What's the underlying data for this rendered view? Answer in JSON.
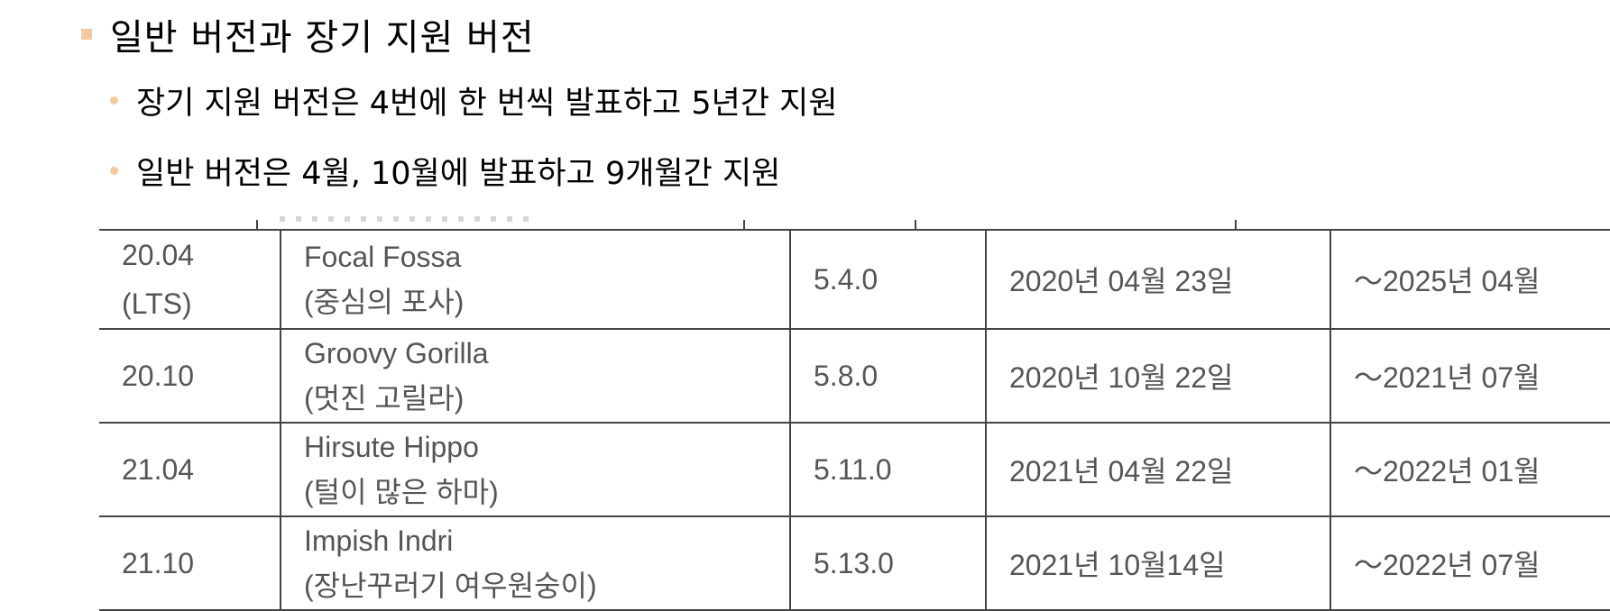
{
  "slide": {
    "title": "일반 버전과 장기 지원 버전",
    "bullets": [
      "장기 지원 버전은 4번에 한 번씩 발표하고 5년간 지원",
      "일반 버전은 4월, 10월에 발표하고 9개월간 지원"
    ]
  },
  "table": {
    "rows": [
      {
        "version": "20.04",
        "version_note": "(LTS)",
        "codename": "Focal Fossa",
        "codename_ko": "(중심의 포사)",
        "kernel": "5.4.0",
        "release": "2020년 04월 23일",
        "support": "～2025년 04월"
      },
      {
        "version": "20.10",
        "version_note": "",
        "codename": "Groovy Gorilla",
        "codename_ko": "(멋진 고릴라)",
        "kernel": "5.8.0",
        "release": "2020년 10월 22일",
        "support": "～2021년 07월"
      },
      {
        "version": "21.04",
        "version_note": "",
        "codename": "Hirsute Hippo",
        "codename_ko": "(털이 많은 하마)",
        "kernel": "5.11.0",
        "release": "2021년 04월 22일",
        "support": "～2022년 01월"
      },
      {
        "version": "21.10",
        "version_note": "",
        "codename": "Impish Indri",
        "codename_ko": "(장난꾸러기 여우원숭이)",
        "kernel": "5.13.0",
        "release": "2021년 10월14일",
        "support": "～2022년 07월"
      }
    ]
  },
  "colors": {
    "bullet": "#f5c9a0",
    "table_text": "#555555",
    "table_border": "#444444"
  }
}
